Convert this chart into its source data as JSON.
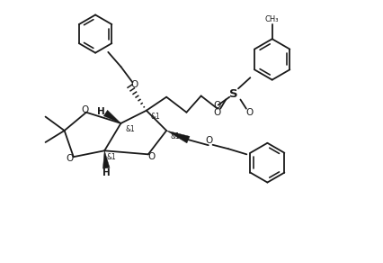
{
  "bg_color": "#ffffff",
  "line_color": "#1a1a1a",
  "lw": 1.3,
  "fs": 7.5,
  "fs_s": 6.0,
  "fig_w": 4.27,
  "fig_h": 2.92,
  "dpi": 100,
  "xlim": [
    0,
    10.5
  ],
  "ylim": [
    0,
    7.15
  ]
}
